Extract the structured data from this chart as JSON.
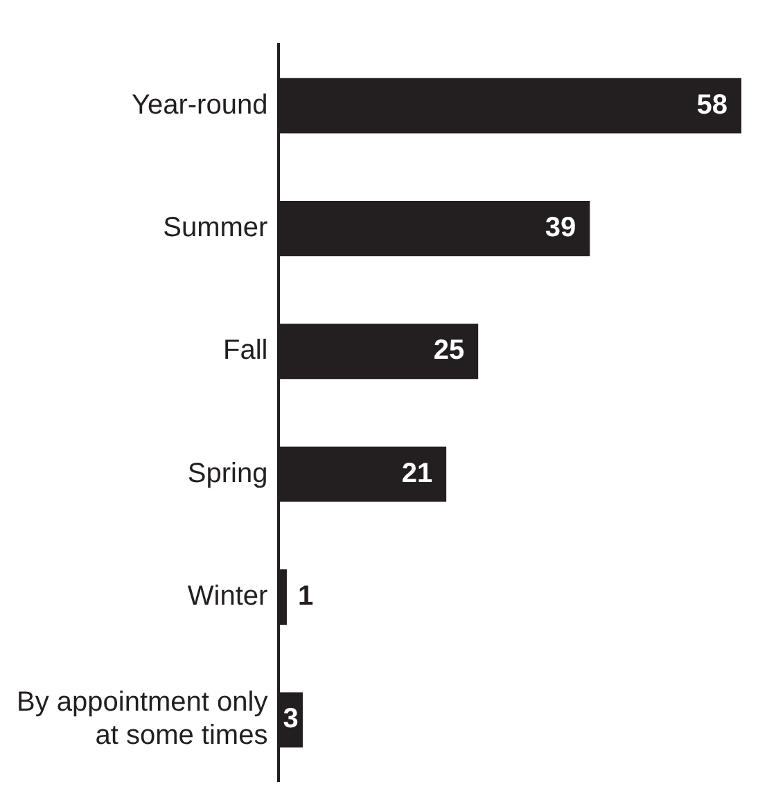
{
  "chart_data": {
    "type": "bar",
    "orientation": "horizontal",
    "categories": [
      "Year-round",
      "Summer",
      "Fall",
      "Spring",
      "Winter",
      "By appointment only at some times"
    ],
    "values": [
      58,
      39,
      25,
      21,
      1,
      3
    ],
    "color": "#231f20",
    "data_labels": true
  }
}
